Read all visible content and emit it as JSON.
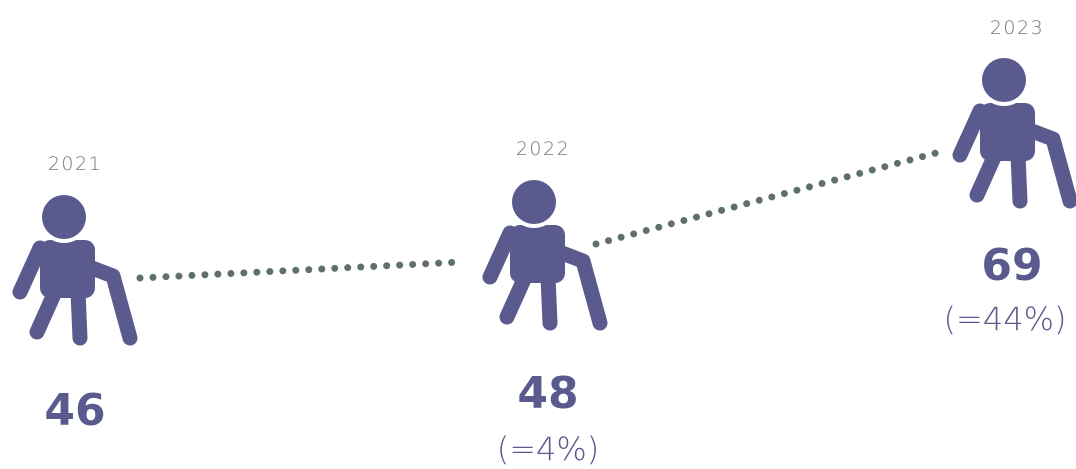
{
  "items": [
    {
      "year": "2021",
      "value": "46"
    },
    {
      "year": "2022",
      "value": "48",
      "change": "(=4%)"
    },
    {
      "year": "2023",
      "value": "69",
      "change": "(=44%)"
    }
  ]
}
